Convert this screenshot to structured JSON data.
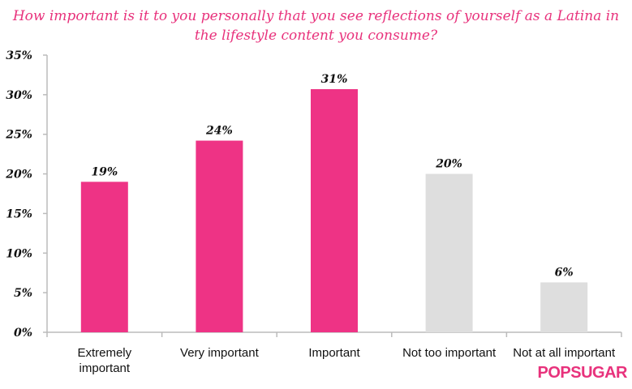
{
  "chart_data": {
    "type": "bar",
    "title": "How important is it to you personally that you see reflections of yourself as a Latina in the lifestyle content you consume?",
    "categories": [
      "Extremely important",
      "Very important",
      "Important",
      "Not too important",
      "Not at all important"
    ],
    "category_lines": [
      [
        "Extremely",
        "important"
      ],
      [
        "Very important"
      ],
      [
        "Important"
      ],
      [
        "Not too important"
      ],
      [
        "Not at all important"
      ]
    ],
    "values": [
      19,
      24.2,
      30.7,
      20,
      6.3
    ],
    "data_labels": [
      "19%",
      "24%",
      "31%",
      "20%",
      "6%"
    ],
    "colors": [
      "#ee3385",
      "#ee3385",
      "#ee3385",
      "#dedede",
      "#dedede"
    ],
    "yticks": [
      0,
      5,
      10,
      15,
      20,
      25,
      30,
      35
    ],
    "ytick_labels": [
      "0%",
      "5%",
      "10%",
      "15%",
      "20%",
      "25%",
      "30%",
      "35%"
    ],
    "ylim": [
      0,
      35
    ],
    "xlabel": "",
    "ylabel": "",
    "grid": false
  },
  "brand": {
    "logo": "POPSUGAR"
  }
}
